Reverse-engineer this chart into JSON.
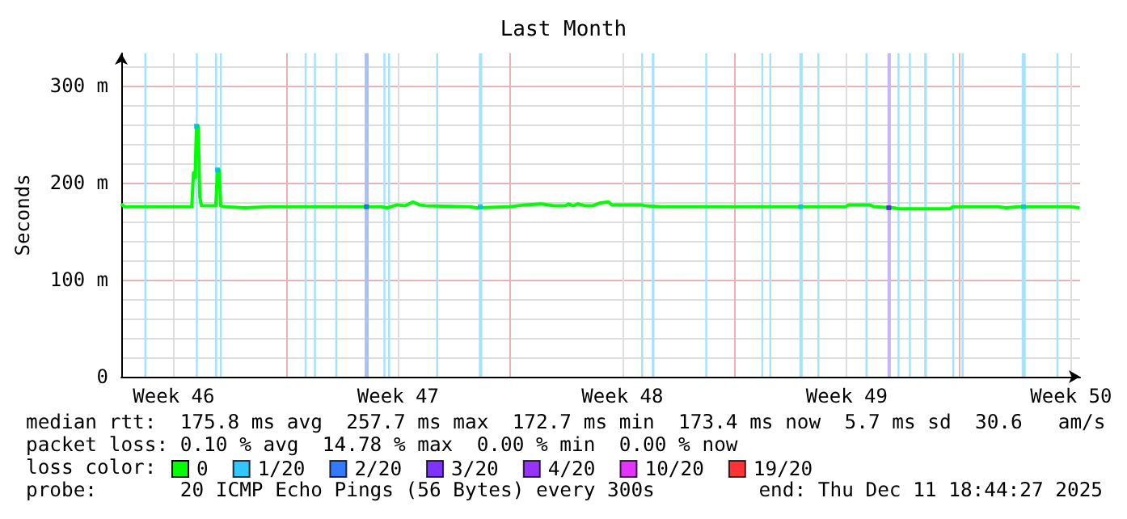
{
  "chart_data": {
    "type": "line",
    "title": "Last Month",
    "ylabel": "Seconds",
    "xlim": [
      "2025-11-11T20:44",
      "2025-12-11T18:44"
    ],
    "xticks": [
      {
        "value": "2025-11-13T12:00",
        "label": "Week 46"
      },
      {
        "value": "2025-11-17T00:00",
        "label": null
      },
      {
        "value": "2025-11-20T12:00",
        "label": "Week 47"
      },
      {
        "value": "2025-11-24T00:00",
        "label": null
      },
      {
        "value": "2025-11-27T12:00",
        "label": "Week 48"
      },
      {
        "value": "2025-12-01T00:00",
        "label": null
      },
      {
        "value": "2025-12-04T12:00",
        "label": "Week 49"
      },
      {
        "value": "2025-12-08T00:00",
        "label": null
      },
      {
        "value": "2025-12-11T12:00",
        "label": "Week 50"
      }
    ],
    "ylim": [
      0,
      333
    ],
    "yticks": [
      {
        "value": 0,
        "label": "0"
      },
      {
        "value": 20,
        "label": null
      },
      {
        "value": 40,
        "label": null
      },
      {
        "value": 60,
        "label": null
      },
      {
        "value": 80,
        "label": null
      },
      {
        "value": 100,
        "label": "100 m"
      },
      {
        "value": 120,
        "label": null
      },
      {
        "value": 140,
        "label": null
      },
      {
        "value": 160,
        "label": null
      },
      {
        "value": 180,
        "label": null
      },
      {
        "value": 200,
        "label": "200 m"
      },
      {
        "value": 220,
        "label": null
      },
      {
        "value": 240,
        "label": null
      },
      {
        "value": 260,
        "label": null
      },
      {
        "value": 280,
        "label": null
      },
      {
        "value": 300,
        "label": "300 m"
      },
      {
        "value": 320,
        "label": null
      }
    ],
    "grid": true,
    "legend": "bottom",
    "series": [
      {
        "name": "0",
        "color": "#00ff00",
        "x": [
          "2025-11-11T20:44",
          "2025-11-11T23:00",
          "2025-11-14T01:30",
          "2025-11-14T02:45",
          "2025-11-14T04:00",
          "2025-11-14T05:00",
          "2025-11-14T06:20",
          "2025-11-14T07:30",
          "2025-11-14T08:45",
          "2025-11-14T19:30",
          "2025-11-14T20:45",
          "2025-11-14T22:00",
          "2025-11-14T23:10",
          "2025-11-15T02:44",
          "2025-11-15T17:08",
          "2025-11-16T11:08",
          "2025-11-19T23:08",
          "2025-11-20T03:56",
          "2025-11-20T11:08",
          "2025-11-20T17:08",
          "2025-11-20T23:08",
          "2025-11-21T03:56",
          "2025-11-21T08:44",
          "2025-11-22T17:08",
          "2025-11-22T23:08",
          "2025-11-23T23:08",
          "2025-11-24T11:08",
          "2025-11-24T23:08",
          "2025-11-25T08:44",
          "2025-11-25T17:08",
          "2025-11-25T19:32",
          "2025-11-25T23:08",
          "2025-11-26T02:44",
          "2025-11-26T08:44",
          "2025-11-26T13:32",
          "2025-11-26T19:32",
          "2025-11-27T01:32",
          "2025-11-27T03:56",
          "2025-11-28T02:44",
          "2025-11-28T05:08",
          "2025-11-28T17:08",
          "2025-12-04T11:08",
          "2025-12-04T13:32",
          "2025-12-05T05:08",
          "2025-12-05T08:44",
          "2025-12-05T23:08",
          "2025-12-06T02:44",
          "2025-12-07T17:08",
          "2025-12-07T19:32",
          "2025-12-09T05:08",
          "2025-12-09T11:08",
          "2025-12-09T20:44",
          "2025-12-11T11:08",
          "2025-12-11T18:20"
        ],
        "values": [
          178,
          175,
          175,
          210,
          205,
          258,
          258,
          185,
          176,
          176,
          213,
          213,
          176,
          175,
          174,
          175,
          175,
          174,
          177,
          176,
          180,
          177,
          176,
          175,
          174,
          175,
          177,
          178,
          176,
          176,
          178,
          176,
          178,
          176,
          176,
          179,
          180,
          177,
          177,
          176,
          175,
          175,
          177,
          177,
          175,
          174,
          173,
          173,
          175,
          175,
          174,
          175,
          175,
          174
        ]
      },
      {
        "name": "1/20",
        "color": "#00b8ff",
        "type": "scatter",
        "x": [
          "2025-11-14T05:00",
          "2025-11-14T20:45",
          "2025-11-23T01:30",
          "2025-12-03T01:30",
          "2025-12-10T00:20"
        ],
        "values": [
          258,
          213,
          175,
          175,
          175
        ]
      },
      {
        "name": "2/20",
        "color": "#0059ff",
        "type": "scatter",
        "x": [
          "2025-11-19T12:20"
        ],
        "values": [
          175
        ]
      },
      {
        "name": "3/20",
        "color": "#5e00ff",
        "type": "scatter",
        "x": [
          "2025-12-05T19:30"
        ],
        "values": [
          174
        ]
      },
      {
        "name": "4/20",
        "color": "#7e00ff",
        "type": "scatter"
      },
      {
        "name": "10/20",
        "color": "#dd00ff",
        "type": "scatter"
      },
      {
        "name": "19/20",
        "color": "#ff0000",
        "type": "scatter"
      }
    ],
    "bands": [
      {
        "axis": "x",
        "from": "2025-11-12T14:00",
        "to": "2025-11-12T15:30",
        "color": "#a6e3fb"
      },
      {
        "axis": "x",
        "from": "2025-11-14T04:30",
        "to": "2025-11-14T06:00",
        "color": "#a6e3fb"
      },
      {
        "axis": "x",
        "from": "2025-11-14T19:00",
        "to": "2025-11-14T20:30",
        "color": "#a6e3fb"
      },
      {
        "axis": "x",
        "from": "2025-11-14T22:30",
        "to": "2025-11-15T00:00",
        "color": "#a6e3fb"
      },
      {
        "axis": "x",
        "from": "2025-11-17T14:00",
        "to": "2025-11-17T15:30",
        "color": "#a6e3fb"
      },
      {
        "axis": "x",
        "from": "2025-11-17T21:00",
        "to": "2025-11-17T22:30",
        "color": "#a6e3fb"
      },
      {
        "axis": "x",
        "from": "2025-11-18T13:00",
        "to": "2025-11-18T14:30",
        "color": "#a6e3fb"
      },
      {
        "axis": "x",
        "from": "2025-11-19T11:00",
        "to": "2025-11-19T14:00",
        "color": "#a8c0f8"
      },
      {
        "axis": "x",
        "from": "2025-11-20T01:00",
        "to": "2025-11-20T02:30",
        "color": "#a6e3fb"
      },
      {
        "axis": "x",
        "from": "2025-11-20T04:30",
        "to": "2025-11-20T06:00",
        "color": "#a6e3fb"
      },
      {
        "axis": "x",
        "from": "2025-11-21T16:30",
        "to": "2025-11-21T18:00",
        "color": "#a6e3fb"
      },
      {
        "axis": "x",
        "from": "2025-11-23T00:30",
        "to": "2025-11-23T03:00",
        "color": "#a6e3fb"
      },
      {
        "axis": "x",
        "from": "2025-11-28T02:00",
        "to": "2025-11-28T03:30",
        "color": "#a6e3fb"
      },
      {
        "axis": "x",
        "from": "2025-11-28T10:00",
        "to": "2025-11-28T12:00",
        "color": "#a6e3fb"
      },
      {
        "axis": "x",
        "from": "2025-11-30T02:00",
        "to": "2025-11-30T03:30",
        "color": "#a6e3fb"
      },
      {
        "axis": "x",
        "from": "2025-12-01T20:00",
        "to": "2025-12-01T21:30",
        "color": "#a6e3fb"
      },
      {
        "axis": "x",
        "from": "2025-12-02T02:00",
        "to": "2025-12-02T03:30",
        "color": "#a6e3fb"
      },
      {
        "axis": "x",
        "from": "2025-12-03T00:30",
        "to": "2025-12-03T03:00",
        "color": "#a6e3fb"
      },
      {
        "axis": "x",
        "from": "2025-12-03T14:00",
        "to": "2025-12-03T15:30",
        "color": "#a6e3fb"
      },
      {
        "axis": "x",
        "from": "2025-12-05T02:00",
        "to": "2025-12-05T03:30",
        "color": "#a6e3fb"
      },
      {
        "axis": "x",
        "from": "2025-12-05T18:30",
        "to": "2025-12-05T21:00",
        "color": "#c9b4f8"
      },
      {
        "axis": "x",
        "from": "2025-12-06T02:00",
        "to": "2025-12-06T03:30",
        "color": "#a6e3fb"
      },
      {
        "axis": "x",
        "from": "2025-12-06T10:30",
        "to": "2025-12-06T12:00",
        "color": "#a6e3fb"
      },
      {
        "axis": "x",
        "from": "2025-12-06T22:00",
        "to": "2025-12-07T00:00",
        "color": "#a6e3fb"
      },
      {
        "axis": "x",
        "from": "2025-12-07T19:00",
        "to": "2025-12-07T20:30",
        "color": "#a6e3fb"
      },
      {
        "axis": "x",
        "from": "2025-12-08T02:00",
        "to": "2025-12-08T03:30",
        "color": "#a6e3fb"
      },
      {
        "axis": "x",
        "from": "2025-12-09T23:00",
        "to": "2025-12-10T02:00",
        "color": "#a6e3fb"
      },
      {
        "axis": "x",
        "from": "2025-12-11T01:00",
        "to": "2025-12-11T02:30",
        "color": "#a6e3fb"
      }
    ],
    "annotations": [
      "median rtt:  175.8 ms avg  257.7 ms max  172.7 ms min  173.4 ms now  5.7 ms sd  30.6   am/s",
      "packet loss: 0.10 % avg  14.78 % max  0.00 % min  0.00 % now",
      "loss color:",
      "probe:       20 ICMP Echo Pings (56 Bytes) every 300s",
      "end: Thu Dec 11 18:44:27 2025"
    ]
  }
}
